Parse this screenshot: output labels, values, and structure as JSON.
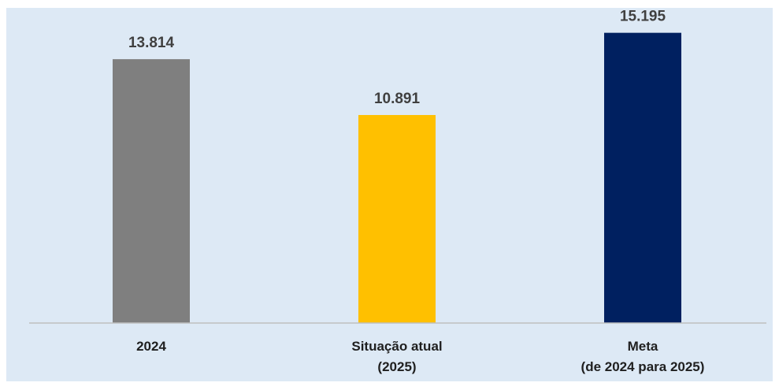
{
  "chart_data": {
    "type": "bar",
    "title": "",
    "xlabel": "",
    "ylabel": "",
    "ylim": [
      0,
      16500
    ],
    "grid": false,
    "legend": "none",
    "background_color": "#dde9f5",
    "categories": [
      {
        "lines": [
          "2024"
        ]
      },
      {
        "lines": [
          "Situação atual",
          "(2025)"
        ]
      },
      {
        "lines": [
          "Meta",
          "(de 2024 para 2025)"
        ]
      }
    ],
    "values": [
      13814,
      10891,
      15195
    ],
    "value_labels": [
      "13.814",
      "10.891",
      "15.195"
    ],
    "colors": [
      "#7f7f7f",
      "#ffc000",
      "#002060"
    ]
  }
}
